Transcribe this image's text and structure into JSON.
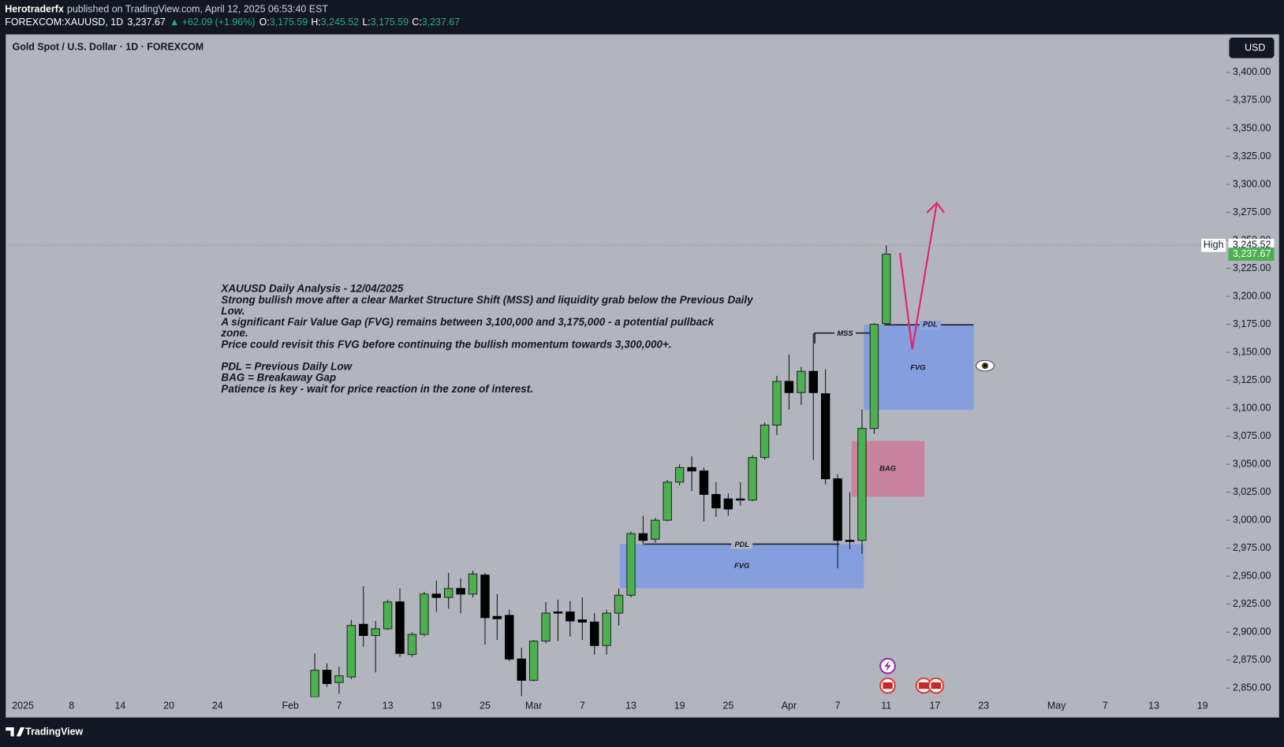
{
  "header": {
    "author": "Herotraderfx",
    "published": "published on TradingView.com, April 12, 2025 06:53:40 EST",
    "symbol": "FOREXCOM:XAUUSD, 1D",
    "last": "3,237.67",
    "change": "▲ +62.09 (+1.96%)",
    "ohlc": [
      {
        "key": "O:",
        "value": "3,175.59"
      },
      {
        "key": "H:",
        "value": "3,245.52"
      },
      {
        "key": "L:",
        "value": "3,175.59"
      },
      {
        "key": "C:",
        "value": "3,237.67"
      }
    ]
  },
  "chart_data": {
    "type": "candlestick",
    "title": "Gold Spot / U.S. Dollar · 1D · FOREXCOM",
    "currency": "USD",
    "categories": [
      "2025",
      null,
      null,
      null,
      "8",
      null,
      null,
      null,
      "14",
      null,
      null,
      null,
      "20",
      null,
      null,
      null,
      "24",
      null,
      null,
      null,
      null,
      null,
      "Feb",
      null,
      null,
      null,
      "7",
      null,
      null,
      null,
      "13",
      null,
      null,
      null,
      "19",
      null,
      null,
      null,
      "25",
      null,
      null,
      null,
      "Mar",
      null,
      null,
      null,
      "7",
      null,
      null,
      null,
      "13",
      null,
      null,
      null,
      "19",
      null,
      null,
      null,
      "25",
      null,
      null,
      null,
      null,
      "Apr",
      null,
      null,
      null,
      "7",
      null,
      null,
      null,
      "11",
      null,
      null,
      null,
      "17",
      null,
      null,
      null,
      "23",
      null,
      null,
      null,
      null,
      null,
      "May",
      null,
      null,
      null,
      "7",
      null,
      null,
      null,
      "13",
      null,
      null,
      null,
      "19",
      null,
      null
    ],
    "open": [
      null,
      null,
      null,
      null,
      null,
      null,
      null,
      null,
      null,
      null,
      null,
      null,
      null,
      null,
      null,
      null,
      null,
      null,
      null,
      null,
      null,
      null,
      null,
      null,
      2842,
      2866,
      2855,
      2860,
      2907,
      2897,
      2903,
      2927,
      2880,
      2898,
      2934,
      2931,
      2939,
      2934,
      2951,
      2914,
      2915,
      2876,
      2857,
      2892,
      2918,
      2918,
      2911,
      2909,
      2888,
      2917,
      2933,
      2988,
      2983,
      3000,
      3034,
      3047,
      3044,
      3023,
      3019,
      3019,
      3018,
      3056,
      3085,
      3124,
      3114,
      3133,
      3113,
      3037,
      2982,
      2982,
      3082,
      3175.59,
      null,
      null,
      null,
      null,
      null,
      null,
      null,
      null,
      null,
      null,
      null,
      null,
      null,
      null,
      null,
      null,
      null,
      null,
      null,
      null,
      null,
      null,
      null,
      null,
      null,
      null,
      null,
      null
    ],
    "high": [
      null,
      null,
      null,
      null,
      null,
      null,
      null,
      null,
      null,
      null,
      null,
      null,
      null,
      null,
      null,
      null,
      null,
      null,
      null,
      null,
      null,
      null,
      null,
      null,
      2881,
      2872,
      2869,
      2911,
      2941,
      2910,
      2929,
      2939,
      2900,
      2936,
      2946,
      2953,
      2948,
      2955,
      2953,
      2934,
      2920,
      2886,
      2893,
      2927,
      2929,
      2928,
      2931,
      2917,
      2920,
      2939,
      2990,
      3004,
      3002,
      3036,
      3050,
      3057,
      3047,
      3034,
      3024,
      3034,
      3058,
      3087,
      3129,
      3148,
      3137,
      3167,
      3135,
      3041,
      3025,
      3099,
      3176,
      3245.52,
      null,
      null,
      null,
      null,
      null,
      null,
      null,
      null,
      null,
      null,
      null,
      null,
      null,
      null,
      null,
      null,
      null,
      null,
      null,
      null,
      null,
      null,
      null,
      null,
      null,
      null,
      null,
      null
    ],
    "low": [
      null,
      null,
      null,
      null,
      null,
      null,
      null,
      null,
      null,
      null,
      null,
      null,
      null,
      null,
      null,
      null,
      null,
      null,
      null,
      null,
      null,
      null,
      null,
      null,
      2834,
      2851,
      2845,
      2858,
      2887,
      2864,
      2902,
      2878,
      2878,
      2896,
      2918,
      2921,
      2917,
      2931,
      2889,
      2893,
      2874,
      2843,
      2856,
      2890,
      2892,
      2896,
      2893,
      2880,
      2880,
      2906,
      2931,
      2978,
      2980,
      2999,
      3031,
      3026,
      2999,
      3003,
      3004,
      3013,
      3017,
      3054,
      3076,
      3099,
      3103,
      3054,
      3032,
      2957,
      2974,
      2970,
      3077,
      3175.59,
      null,
      null,
      null,
      null,
      null,
      null,
      null,
      null,
      null,
      null,
      null,
      null,
      null,
      null,
      null,
      null,
      null,
      null,
      null,
      null,
      null,
      null,
      null,
      null,
      null,
      null,
      null,
      null
    ],
    "close": [
      null,
      null,
      null,
      null,
      null,
      null,
      null,
      null,
      null,
      null,
      null,
      null,
      null,
      null,
      null,
      null,
      null,
      null,
      null,
      null,
      null,
      null,
      null,
      null,
      2866,
      2854,
      2861,
      2906,
      2897,
      2903,
      2927,
      2881,
      2898,
      2934,
      2931,
      2939,
      2934,
      2952,
      2913,
      2912,
      2876,
      2857,
      2892,
      2917,
      2917,
      2910,
      2909,
      2888,
      2917,
      2933,
      2988,
      2982,
      3000,
      3034,
      3047,
      3044,
      3023,
      3011,
      3010,
      3018,
      3056,
      3085,
      3124,
      3114,
      3133,
      3114,
      3037,
      2982,
      2981,
      3082,
      3175,
      3237.67,
      null,
      null,
      null,
      null,
      null,
      null,
      null,
      null,
      null,
      null,
      null,
      null,
      null,
      null,
      null,
      null,
      null,
      null,
      null,
      null,
      null,
      null,
      null,
      null,
      null,
      null,
      null,
      null
    ],
    "up_color": "#4caf50",
    "down_color": "#000000",
    "border_color": "#1e2a1e",
    "ylim": [
      2842,
      3434
    ],
    "yticks": [
      {
        "value": 2850,
        "label": "2,850.00"
      },
      {
        "value": 2875,
        "label": "2,875.00"
      },
      {
        "value": 2900,
        "label": "2,900.00"
      },
      {
        "value": 2925,
        "label": "2,925.00"
      },
      {
        "value": 2950,
        "label": "2,950.00"
      },
      {
        "value": 2975,
        "label": "2,975.00"
      },
      {
        "value": 3000,
        "label": "3,000.00"
      },
      {
        "value": 3025,
        "label": "3,025.00"
      },
      {
        "value": 3050,
        "label": "3,050.00"
      },
      {
        "value": 3075,
        "label": "3,075.00"
      },
      {
        "value": 3100,
        "label": "3,100.00"
      },
      {
        "value": 3125,
        "label": "3,125.00"
      },
      {
        "value": 3150,
        "label": "3,150.00"
      },
      {
        "value": 3175,
        "label": "3,175.00"
      },
      {
        "value": 3200,
        "label": "3,200.00"
      },
      {
        "value": 3225,
        "label": "3,225.00"
      },
      {
        "value": 3250,
        "label": "3,250.00"
      },
      {
        "value": 3275,
        "label": "3,275.00"
      },
      {
        "value": 3300,
        "label": "3,300.00"
      },
      {
        "value": 3325,
        "label": "3,325.00"
      },
      {
        "value": 3350,
        "label": "3,350.00"
      },
      {
        "value": 3375,
        "label": "3,375.00"
      },
      {
        "value": 3400,
        "label": "3,400.00"
      }
    ],
    "grid": false,
    "high_label": {
      "name": "High",
      "value": 3245.52,
      "label": "3,245.52"
    },
    "last_label": {
      "value": 3237.67,
      "label": "3,237.67",
      "color": "#4caf50"
    },
    "annotations": {
      "mss": "MSS",
      "pdl": [
        "PDL",
        "PDL"
      ],
      "fvg": [
        "FVG",
        "FVG"
      ],
      "bag": "BAG",
      "note": [
        [
          "XAUUSD Daily Analysis - 12/04/2025",
          "Strong bullish move after a clear Market Structure Shift (MSS) and liquidity grab below the Previous Daily",
          "Low.",
          "A significant Fair Value Gap (FVG) remains between 3,100,000 and 3,175,000 - a potential pullback",
          "zone.",
          "Price could revisit this FVG before continuing the bullish momentum towards 3,300,000+."
        ],
        [
          "PDL = Previous Daily Low",
          "BAG = Breakaway Gap",
          "Patience is key - wait for price reaction in the zone of interest."
        ]
      ]
    }
  },
  "footer": {
    "brand": "TradingView"
  }
}
